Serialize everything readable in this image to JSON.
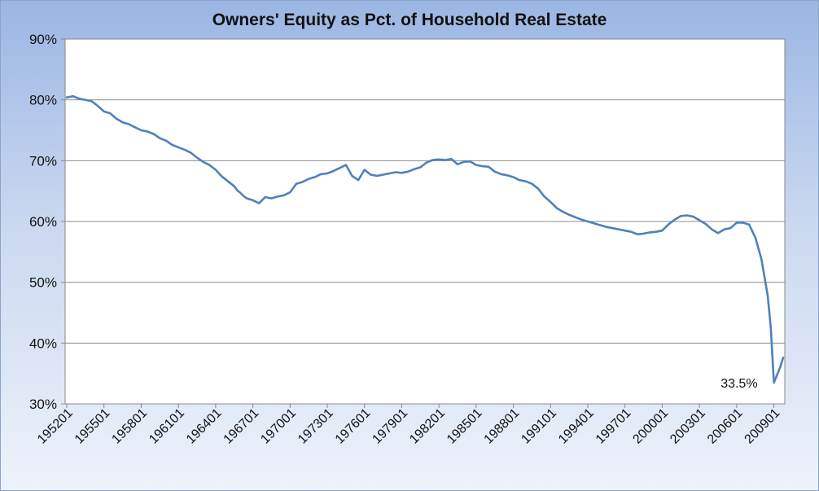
{
  "chart_data": {
    "type": "line",
    "title": "Owners' Equity as Pct. of Household Real Estate",
    "xlabel": "",
    "ylabel": "",
    "ylim": [
      30,
      90
    ],
    "yticks": [
      "30%",
      "40%",
      "50%",
      "60%",
      "70%",
      "80%",
      "90%"
    ],
    "xticks": [
      "195201",
      "195501",
      "195801",
      "196101",
      "196401",
      "196701",
      "197001",
      "197301",
      "197601",
      "197901",
      "198201",
      "198501",
      "198801",
      "199101",
      "199401",
      "199701",
      "200001",
      "200301",
      "200601",
      "200901"
    ],
    "grid": "horizontal",
    "legend": "none",
    "line_color": "#4f81bd",
    "annotation": {
      "text": "33.5%",
      "x": 2009.0,
      "y": 33.5
    },
    "series": [
      {
        "x": [
          1952.0,
          1952.5,
          1953.0,
          1953.5,
          1954.0,
          1954.5,
          1955.0,
          1955.5,
          1956.0,
          1956.5,
          1957.0,
          1957.5,
          1958.0,
          1958.5,
          1959.0,
          1959.5,
          1960.0,
          1960.5,
          1961.0,
          1961.5,
          1962.0,
          1962.5,
          1963.0,
          1963.5,
          1964.0,
          1964.5,
          1965.0,
          1965.5,
          1965.75,
          1966.0,
          1966.25,
          1966.5,
          1967.0,
          1967.5,
          1968.0,
          1968.5,
          1969.0,
          1969.5,
          1970.0,
          1970.5,
          1971.0,
          1971.5,
          1972.0,
          1972.5,
          1973.0,
          1973.5,
          1974.0,
          1974.5,
          1975.0,
          1975.5,
          1976.0,
          1976.5,
          1977.0,
          1977.5,
          1978.0,
          1978.5,
          1979.0,
          1979.5,
          1980.0,
          1980.5,
          1981.0,
          1981.5,
          1982.0,
          1982.5,
          1983.0,
          1983.5,
          1984.0,
          1984.5,
          1985.0,
          1985.5,
          1986.0,
          1986.5,
          1987.0,
          1987.5,
          1988.0,
          1988.5,
          1989.0,
          1989.5,
          1990.0,
          1990.5,
          1991.0,
          1991.5,
          1992.0,
          1992.5,
          1993.0,
          1993.5,
          1994.0,
          1994.5,
          1995.0,
          1995.5,
          1996.0,
          1996.5,
          1997.0,
          1997.5,
          1998.0,
          1998.5,
          1999.0,
          1999.5,
          2000.0,
          2000.5,
          2001.0,
          2001.5,
          2002.0,
          2002.5,
          2003.0,
          2003.5,
          2004.0,
          2004.5,
          2005.0,
          2005.5,
          2006.0,
          2006.5,
          2007.0,
          2007.5,
          2008.0,
          2008.5,
          2008.75,
          2009.0,
          2009.5,
          2009.75
        ],
        "y": [
          80.4,
          80.6,
          80.2,
          80.0,
          79.8,
          79.0,
          78.1,
          77.8,
          76.9,
          76.3,
          76.0,
          75.5,
          75.0,
          74.8,
          74.4,
          73.7,
          73.3,
          72.6,
          72.2,
          71.8,
          71.3,
          70.5,
          69.8,
          69.3,
          68.5,
          67.4,
          66.6,
          65.8,
          65.1,
          64.7,
          64.2,
          63.8,
          63.5,
          63.0,
          64.0,
          63.8,
          64.1,
          64.3,
          64.8,
          66.2,
          66.5,
          67.0,
          67.3,
          67.8,
          67.9,
          68.3,
          68.8,
          69.3,
          67.5,
          66.8,
          68.5,
          67.7,
          67.5,
          67.7,
          67.9,
          68.1,
          68.0,
          68.2,
          68.6,
          68.9,
          69.7,
          70.1,
          70.2,
          70.1,
          70.3,
          69.4,
          69.8,
          69.9,
          69.3,
          69.1,
          69.0,
          68.2,
          67.8,
          67.6,
          67.3,
          66.8,
          66.6,
          66.2,
          65.4,
          64.1,
          63.2,
          62.2,
          61.6,
          61.1,
          60.7,
          60.3,
          60.0,
          59.7,
          59.4,
          59.1,
          58.9,
          58.7,
          58.5,
          58.3,
          57.9,
          58.0,
          58.2,
          58.3,
          58.5,
          59.5,
          60.3,
          60.9,
          61.0,
          60.8,
          60.2,
          59.6,
          58.7,
          58.1,
          58.7,
          58.9,
          59.8,
          59.8,
          59.5,
          57.4,
          53.8,
          47.8,
          42.5,
          33.5,
          36.0,
          37.6
        ]
      }
    ]
  }
}
